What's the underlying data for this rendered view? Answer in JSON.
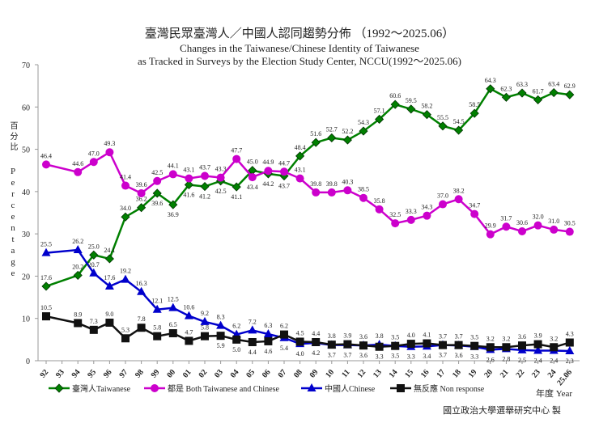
{
  "chart_data": {
    "type": "line",
    "title": "臺灣民眾臺灣人／中國人認同趨勢分佈 （1992～2025.06）",
    "subtitle": [
      "Changes in the Taiwanese/Chinese Identity of Taiwanese",
      "as Tracked in Surveys by the Election Study Center, NCCU(1992～2025.06)"
    ],
    "ylabel_zh": "百分比",
    "ylabel": "Percentage",
    "xlabel": "年度 Year",
    "ylim": [
      0,
      70
    ],
    "yticks": [
      "0",
      "10",
      "20",
      "30",
      "40",
      "50",
      "60",
      "70"
    ],
    "grid": false,
    "legend_position": "bottom",
    "categories": [
      "92",
      "93",
      "94",
      "95",
      "96",
      "97",
      "98",
      "99",
      "00",
      "01",
      "02",
      "03",
      "04",
      "05",
      "06",
      "07",
      "08",
      "09",
      "10",
      "11",
      "12",
      "13",
      "14",
      "15",
      "16",
      "17",
      "18",
      "19",
      "20",
      "21",
      "22",
      "23",
      "24",
      "25.06"
    ],
    "series": [
      {
        "name": "臺灣人Taiwanese",
        "color": "#008000",
        "marker": "diamond",
        "values": [
          17.6,
          null,
          20.2,
          25.0,
          24.1,
          34.0,
          36.2,
          39.6,
          36.9,
          41.6,
          41.2,
          42.5,
          41.1,
          45.0,
          44.2,
          43.7,
          48.4,
          51.6,
          52.7,
          52.2,
          54.3,
          57.1,
          60.6,
          59.5,
          58.2,
          55.5,
          54.5,
          58.5,
          64.3,
          62.3,
          63.3,
          61.7,
          63.4,
          62.9
        ]
      },
      {
        "name": "都是 Both Taiwanese and Chinese",
        "color": "#cc00cc",
        "marker": "circle",
        "values": [
          46.4,
          null,
          44.6,
          47.0,
          49.3,
          41.4,
          39.6,
          42.5,
          44.1,
          43.1,
          43.7,
          43.3,
          47.7,
          43.4,
          44.9,
          44.7,
          43.1,
          39.8,
          39.8,
          40.3,
          38.5,
          35.8,
          32.5,
          33.3,
          34.3,
          37.0,
          38.2,
          34.7,
          29.9,
          31.7,
          30.6,
          32.0,
          31.0,
          30.5
        ]
      },
      {
        "name": "中國人Chinese",
        "color": "#0000cc",
        "marker": "triangle",
        "values": [
          25.5,
          null,
          26.2,
          20.7,
          17.6,
          19.2,
          16.3,
          12.1,
          12.5,
          10.6,
          9.2,
          8.3,
          6.2,
          7.2,
          6.3,
          5.4,
          4.0,
          4.2,
          3.7,
          3.7,
          3.6,
          3.8,
          3.5,
          3.3,
          3.4,
          3.7,
          3.6,
          3.3,
          2.6,
          2.8,
          2.5,
          2.4,
          2.4,
          2.3
        ]
      },
      {
        "name": "無反應 Non response",
        "color": "#111111",
        "marker": "square",
        "values": [
          10.5,
          null,
          8.9,
          7.3,
          9.0,
          5.3,
          7.8,
          5.8,
          6.5,
          4.7,
          5.8,
          5.9,
          5.0,
          4.4,
          4.6,
          6.2,
          4.5,
          4.4,
          3.8,
          3.9,
          3.6,
          3.3,
          3.5,
          4.0,
          4.1,
          3.7,
          3.7,
          3.5,
          3.2,
          3.2,
          3.6,
          3.9,
          3.2,
          4.3
        ]
      }
    ],
    "credit": "國立政治大學選舉研究中心 製"
  }
}
